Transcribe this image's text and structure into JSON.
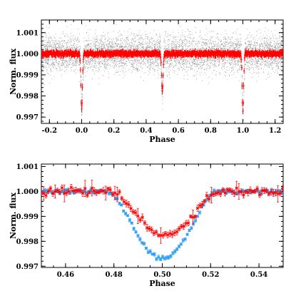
{
  "chart_data": [
    {
      "type": "scatter",
      "xlabel": "Phase",
      "ylabel": "Norm. flux",
      "xlim": [
        -0.25,
        1.25
      ],
      "ylim": [
        0.9967,
        1.0016
      ],
      "xticks": [
        -0.2,
        0.0,
        0.2,
        0.4,
        0.6,
        0.8,
        1.0,
        1.2
      ],
      "xtick_labels": [
        "-0.2",
        "0.0",
        "0.2",
        "0.4",
        "0.6",
        "0.8",
        "1.0",
        "1.2"
      ],
      "yticks": [
        0.997,
        0.998,
        0.999,
        1.0,
        1.001
      ],
      "ytick_labels": [
        "0.997",
        "0.998",
        "0.999",
        "1.000",
        "1.001"
      ],
      "colors": {
        "raw": "#7f7f7f",
        "binned": "#ff0000"
      },
      "eclipses": [
        {
          "phase": 0.0,
          "depth": 0.0027
        },
        {
          "phase": 0.5,
          "depth": 0.00175
        },
        {
          "phase": 1.0,
          "depth": 0.0027
        }
      ],
      "baseline": 1.0,
      "series": [
        {
          "name": "",
          "kind": "raw points",
          "color": "#7f7f7f"
        },
        {
          "name": "",
          "kind": "binned points with error bars",
          "color": "#ff0000"
        }
      ],
      "grid": false,
      "legend": "none"
    },
    {
      "type": "scatter",
      "xlabel": "Phase",
      "ylabel": "Norm. flux",
      "xlim": [
        0.45,
        0.55
      ],
      "ylim": [
        0.99695,
        1.0011
      ],
      "xticks": [
        0.46,
        0.48,
        0.5,
        0.52,
        0.54
      ],
      "xtick_labels": [
        "0.46",
        "0.48",
        "0.50",
        "0.52",
        "0.54"
      ],
      "yticks": [
        0.997,
        0.998,
        0.999,
        1.0,
        1.001
      ],
      "ytick_labels": [
        "0.997",
        "0.998",
        "0.999",
        "1.000",
        "1.001"
      ],
      "series": [
        {
          "name": "",
          "color": "#ff0000",
          "center": 0.501,
          "depth": 0.00175,
          "width": 0.0225
        },
        {
          "name": "",
          "color": "#2a9df4",
          "center": 0.5,
          "depth": 0.0027,
          "width": 0.0225
        }
      ],
      "grid": false,
      "legend": "none"
    }
  ]
}
